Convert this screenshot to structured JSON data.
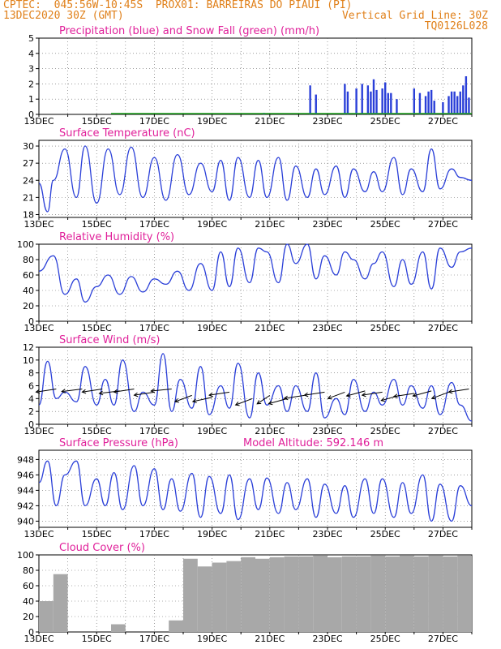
{
  "header": {
    "line1_left": "CPTEC:  045:56W-10:45S  PROX01: BARREIRAS DO PIAUI (PI)",
    "line2_left": "13DEC2020 30Z (GMT)",
    "line2_right": "Vertical Grid Line: 30Z",
    "line3_right": "TQ0126L028"
  },
  "colors": {
    "header": "#e0801a",
    "title": "#e0209a",
    "line": "#2a3fd8",
    "precip": "#2a3fd8",
    "snow": "#1aa01a",
    "cloud": "#a8a8a8",
    "grid": "#606060"
  },
  "x_labels": [
    "13DEC",
    "15DEC",
    "17DEC",
    "19DEC",
    "21DEC",
    "23DEC",
    "25DEC",
    "27DEC"
  ],
  "chart_data": [
    {
      "type": "bar",
      "title": "Precipitation (blue) and Snow Fall (green) (mm/h)",
      "ylim": [
        0,
        5
      ],
      "yticks": [
        0,
        1,
        2,
        3,
        4,
        5
      ],
      "x_range_days": [
        0,
        15
      ],
      "x": [
        7.8,
        9.4,
        9.6,
        10.6,
        10.7,
        11.0,
        11.2,
        11.4,
        11.5,
        11.6,
        11.7,
        11.9,
        12.0,
        12.1,
        12.2,
        12.4,
        13.0,
        13.2,
        13.4,
        13.5,
        13.6,
        13.7,
        14.0,
        14.2,
        14.3,
        14.4,
        14.5,
        14.6,
        14.7,
        14.8,
        14.9
      ],
      "series": [
        {
          "name": "Precipitation",
          "values": [
            0.1,
            1.9,
            1.3,
            2.0,
            1.5,
            1.7,
            2.0,
            1.9,
            1.5,
            2.3,
            1.6,
            1.7,
            2.1,
            1.4,
            1.4,
            1.0,
            1.7,
            1.4,
            1.2,
            1.5,
            1.6,
            0.9,
            0.8,
            1.2,
            1.5,
            1.5,
            1.2,
            1.5,
            1.9,
            2.5,
            1.1
          ]
        },
        {
          "name": "Snow Fall",
          "values": [
            0,
            0,
            0,
            0,
            0,
            0,
            0,
            0,
            0,
            0,
            0,
            0,
            0,
            0,
            0,
            0,
            0,
            0,
            0,
            0,
            0,
            0,
            0,
            0,
            0,
            0,
            0,
            0,
            0,
            0,
            0
          ]
        }
      ]
    },
    {
      "type": "line",
      "title": "Surface Temperature (nC)",
      "ylim": [
        17.5,
        31
      ],
      "yticks": [
        18,
        21,
        24,
        27,
        30
      ],
      "x": [
        0,
        0.3,
        0.5,
        0.9,
        1.3,
        1.6,
        2.0,
        2.4,
        2.8,
        3.2,
        3.6,
        4.0,
        4.4,
        4.8,
        5.2,
        5.6,
        6.0,
        6.3,
        6.6,
        6.9,
        7.3,
        7.6,
        7.9,
        8.3,
        8.6,
        8.9,
        9.3,
        9.6,
        9.9,
        10.3,
        10.6,
        10.9,
        11.3,
        11.6,
        11.9,
        12.3,
        12.6,
        12.9,
        13.3,
        13.6,
        13.9,
        14.3,
        14.6,
        15.0
      ],
      "series": [
        {
          "name": "Temperature",
          "values": [
            23.5,
            18.5,
            24,
            29.5,
            21,
            30,
            20,
            29.5,
            21.5,
            29.8,
            21,
            28,
            20.5,
            28.5,
            21.5,
            27,
            22,
            27.5,
            20.5,
            28,
            21,
            27.5,
            21,
            28,
            20.5,
            26.5,
            21,
            26,
            21.5,
            26.5,
            21,
            26,
            22,
            25.5,
            22,
            28,
            21.5,
            26,
            22,
            29.5,
            22.5,
            26,
            24.5,
            24
          ]
        }
      ]
    },
    {
      "type": "line",
      "title": "Relative Humidity (%)",
      "ylim": [
        0,
        100
      ],
      "yticks": [
        0,
        20,
        40,
        60,
        80,
        100
      ],
      "x": [
        0,
        0.5,
        0.9,
        1.3,
        1.6,
        2.0,
        2.4,
        2.8,
        3.2,
        3.6,
        4.0,
        4.4,
        4.8,
        5.2,
        5.6,
        6.0,
        6.3,
        6.6,
        6.9,
        7.3,
        7.6,
        7.9,
        8.3,
        8.6,
        8.9,
        9.3,
        9.6,
        9.9,
        10.3,
        10.6,
        10.9,
        11.3,
        11.6,
        11.9,
        12.3,
        12.6,
        12.9,
        13.3,
        13.6,
        13.9,
        14.3,
        14.6,
        15.0
      ],
      "series": [
        {
          "name": "Relative Humidity",
          "values": [
            65,
            85,
            35,
            55,
            25,
            45,
            60,
            35,
            58,
            38,
            55,
            48,
            65,
            40,
            75,
            40,
            90,
            45,
            95,
            50,
            95,
            90,
            50,
            100,
            75,
            100,
            55,
            85,
            60,
            90,
            80,
            55,
            75,
            90,
            45,
            80,
            48,
            90,
            42,
            95,
            70,
            90,
            95
          ]
        }
      ]
    },
    {
      "type": "line",
      "title": "Surface Wind (m/s)",
      "ylim": [
        0,
        12
      ],
      "yticks": [
        0,
        2,
        4,
        6,
        8,
        10,
        12
      ],
      "x": [
        0,
        0.3,
        0.6,
        0.9,
        1.3,
        1.6,
        2.0,
        2.3,
        2.6,
        2.9,
        3.3,
        3.6,
        4.0,
        4.3,
        4.6,
        4.9,
        5.3,
        5.6,
        5.9,
        6.3,
        6.6,
        6.9,
        7.3,
        7.6,
        7.9,
        8.3,
        8.6,
        8.9,
        9.3,
        9.6,
        9.9,
        10.3,
        10.6,
        10.9,
        11.3,
        11.6,
        11.9,
        12.3,
        12.6,
        12.9,
        13.3,
        13.6,
        13.9,
        14.3,
        14.6,
        15.0
      ],
      "series": [
        {
          "name": "Wind Speed",
          "values": [
            3,
            9.8,
            4,
            5,
            3.5,
            9,
            3,
            7,
            3,
            10,
            2,
            5,
            3,
            11,
            2,
            7,
            2.5,
            9,
            1.5,
            6,
            2.5,
            9.5,
            1,
            8,
            3,
            6,
            2,
            6,
            2,
            8,
            1,
            4,
            1.5,
            7,
            2,
            5,
            3,
            7,
            3,
            6,
            2.5,
            6,
            1.5,
            6.5,
            3,
            0.5
          ]
        }
      ],
      "wind_vectors": [
        {
          "x": 0.6,
          "speed": 5.5,
          "dx": 1,
          "dy": 0.3
        },
        {
          "x": 1.5,
          "speed": 5.5,
          "dx": 1,
          "dy": 0.25
        },
        {
          "x": 2.2,
          "speed": 5.5,
          "dx": 1,
          "dy": 0.3
        },
        {
          "x": 2.8,
          "speed": 5.2,
          "dx": 1,
          "dy": 0.25
        },
        {
          "x": 3.3,
          "speed": 5.5,
          "dx": 1,
          "dy": 0.3
        },
        {
          "x": 4.0,
          "speed": 5.0,
          "dx": 1,
          "dy": 0.3
        },
        {
          "x": 4.6,
          "speed": 5.5,
          "dx": 1,
          "dy": 0.2
        },
        {
          "x": 5.3,
          "speed": 4.5,
          "dx": 0.8,
          "dy": 0.6
        },
        {
          "x": 6.0,
          "speed": 4.2,
          "dx": 0.9,
          "dy": 0.4
        },
        {
          "x": 6.6,
          "speed": 5.0,
          "dx": 1,
          "dy": 0.3
        },
        {
          "x": 7.4,
          "speed": 4.0,
          "dx": 0.8,
          "dy": 0.6
        },
        {
          "x": 8.0,
          "speed": 4.5,
          "dx": 0.6,
          "dy": 0.8
        },
        {
          "x": 8.6,
          "speed": 4.0,
          "dx": 0.9,
          "dy": 0.5
        },
        {
          "x": 9.2,
          "speed": 4.5,
          "dx": 1,
          "dy": 0.3
        },
        {
          "x": 9.9,
          "speed": 5.0,
          "dx": 1,
          "dy": 0.3
        },
        {
          "x": 10.6,
          "speed": 5.0,
          "dx": 0.8,
          "dy": 0.6
        },
        {
          "x": 11.3,
          "speed": 5.2,
          "dx": 0.9,
          "dy": 0.5
        },
        {
          "x": 11.9,
          "speed": 5.0,
          "dx": 1,
          "dy": 0.3
        },
        {
          "x": 12.5,
          "speed": 4.5,
          "dx": 0.9,
          "dy": 0.5
        },
        {
          "x": 13.0,
          "speed": 4.8,
          "dx": 1,
          "dy": 0.3
        },
        {
          "x": 13.6,
          "speed": 5.2,
          "dx": 0.9,
          "dy": 0.5
        },
        {
          "x": 14.2,
          "speed": 5.0,
          "dx": 0.8,
          "dy": 0.6
        },
        {
          "x": 14.9,
          "speed": 5.5,
          "dx": 1,
          "dy": 0.3
        }
      ]
    },
    {
      "type": "line",
      "title": "Surface Pressure (hPa)",
      "annotation": "Model Altitude: 592.146 m",
      "ylim": [
        939.2,
        949.2
      ],
      "yticks": [
        940,
        942,
        944,
        946,
        948
      ],
      "x": [
        0,
        0.3,
        0.6,
        0.9,
        1.3,
        1.6,
        2.0,
        2.3,
        2.6,
        2.9,
        3.3,
        3.6,
        4.0,
        4.3,
        4.6,
        4.9,
        5.3,
        5.6,
        5.9,
        6.3,
        6.6,
        6.9,
        7.3,
        7.6,
        7.9,
        8.3,
        8.6,
        8.9,
        9.3,
        9.6,
        9.9,
        10.3,
        10.6,
        10.9,
        11.3,
        11.6,
        11.9,
        12.3,
        12.6,
        12.9,
        13.3,
        13.6,
        13.9,
        14.3,
        14.6,
        15.0
      ],
      "series": [
        {
          "name": "Pressure",
          "values": [
            945,
            947.8,
            942,
            946,
            947.8,
            942,
            945.5,
            942,
            946.3,
            941.5,
            947.2,
            942,
            946.8,
            941.5,
            945.5,
            941.3,
            946.2,
            940.5,
            945.8,
            941,
            946,
            940.2,
            945.5,
            941.5,
            945.6,
            941,
            945,
            941.5,
            945.5,
            940.5,
            944.8,
            941,
            944.6,
            940.5,
            945.5,
            941,
            945.5,
            940.5,
            945,
            941,
            946,
            940,
            944.8,
            940,
            944.6,
            942
          ]
        }
      ]
    },
    {
      "type": "bar",
      "title": "Cloud Cover (%)",
      "ylim": [
        0,
        100
      ],
      "yticks": [
        0,
        20,
        40,
        60,
        80,
        100
      ],
      "x_range_days": [
        0,
        15
      ],
      "x": [
        0,
        0.5,
        1.0,
        1.5,
        2.0,
        2.5,
        3.0,
        3.5,
        4.0,
        4.5,
        5.0,
        5.5,
        6.0,
        6.5,
        7.0,
        7.5,
        8.0,
        8.5,
        9.0,
        9.5,
        10.0,
        10.5,
        11.0,
        11.5,
        12.0,
        12.5,
        13.0,
        13.5,
        14.0,
        14.5
      ],
      "values": [
        40,
        75,
        0,
        0,
        0,
        10,
        0,
        0,
        0,
        15,
        95,
        85,
        90,
        92,
        97,
        95,
        97,
        98,
        98,
        99,
        97,
        98,
        98,
        99,
        98,
        99,
        98,
        99,
        98,
        99
      ]
    }
  ]
}
